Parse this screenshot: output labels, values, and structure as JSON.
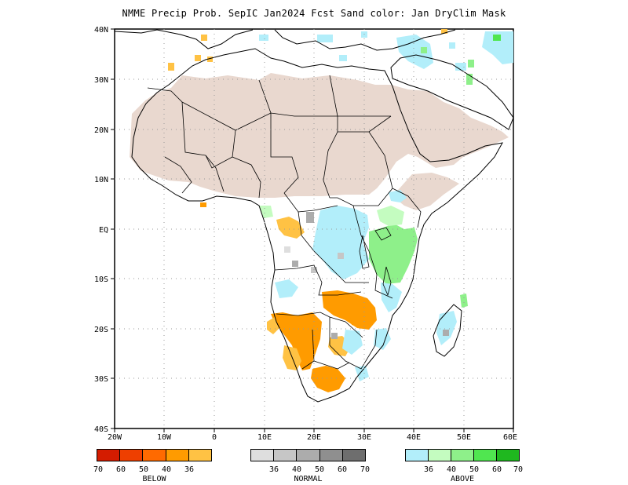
{
  "title": "NMME Precip Prob. SepIC  Jan2024 Fcst  Sand color: Jan DryClim Mask",
  "axes": {
    "lat_labels": [
      "40N",
      "30N",
      "20N",
      "10N",
      "EQ",
      "10S",
      "20S",
      "30S",
      "40S"
    ],
    "lon_labels": [
      "20W",
      "10W",
      "0",
      "10E",
      "20E",
      "30E",
      "40E",
      "50E",
      "60E"
    ]
  },
  "colors": {
    "land_outline": "#000000",
    "dry_mask": "#e9d8cf",
    "grid": "#999999"
  },
  "legends": {
    "below": {
      "name": "BELOW",
      "colors": [
        "#d41c00",
        "#ee3f00",
        "#ff6a00",
        "#ff9b00",
        "#ffc244"
      ],
      "labels": [
        "70",
        "60",
        "50",
        "40",
        "36"
      ]
    },
    "normal": {
      "name": "NORMAL",
      "colors": [
        "#dedede",
        "#c6c6c6",
        "#acacac",
        "#8f8f8f",
        "#6e6e6e"
      ],
      "labels": [
        "36",
        "40",
        "50",
        "60",
        "70"
      ]
    },
    "above": {
      "name": "ABOVE",
      "colors": [
        "#b2eefa",
        "#c4fcc0",
        "#8ef08a",
        "#50e650",
        "#1fb81f"
      ],
      "labels": [
        "36",
        "40",
        "50",
        "60",
        "70"
      ]
    }
  }
}
